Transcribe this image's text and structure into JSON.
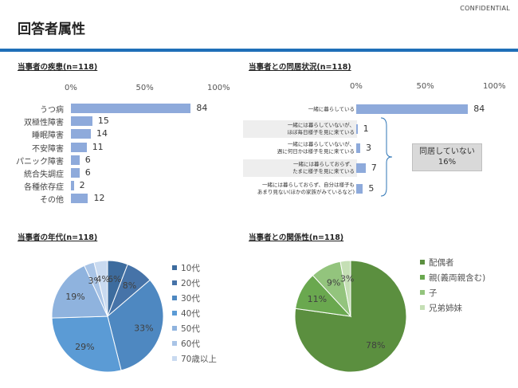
{
  "header": {
    "confidential": "CONFIDENTIAL",
    "title": "回答者属性"
  },
  "colors": {
    "bar": "#8eaadb",
    "rule": "#1f6fb8",
    "age_slices": [
      "#3d6c9e",
      "#4673a8",
      "#4e88c1",
      "#5b9bd5",
      "#8fb3de",
      "#a9c4e6",
      "#c9daf0"
    ],
    "rel_slices": [
      "#5b8f3f",
      "#6aa84f",
      "#93c47d",
      "#c5dfb5"
    ]
  },
  "chart_data": [
    {
      "id": "disease",
      "type": "bar",
      "orientation": "horizontal",
      "title": "当事者の疾患(n=118)",
      "xticks": [
        "0%",
        "50%",
        "100%"
      ],
      "xlim": [
        0,
        100
      ],
      "categories": [
        "うつ病",
        "双極性障害",
        "睡眠障害",
        "不安障害",
        "パニック障害",
        "統合失調症",
        "各種依存症",
        "その他"
      ],
      "values": [
        84,
        15,
        14,
        11,
        6,
        6,
        2,
        12
      ]
    },
    {
      "id": "cohabitation",
      "type": "bar",
      "orientation": "horizontal",
      "title": "当事者との同居状況(n=118)",
      "xticks": [
        "0%",
        "50%",
        "100%"
      ],
      "xlim": [
        0,
        100
      ],
      "categories": [
        [
          "一緒に暮らしている"
        ],
        [
          "一緒には暮らしていないが、",
          "ほぼ毎日様子を見に来ている"
        ],
        [
          "一緒には暮らしていないが、",
          "週に何日かは様子を見に来ている"
        ],
        [
          "一緒には暮らしておらず、",
          "たまに様子を見に来ている"
        ],
        [
          "一緒には暮らしておらず、自分は様子も",
          "あまり見ない(ほかの家族がみているなど)"
        ]
      ],
      "values": [
        84,
        1,
        3,
        7,
        5
      ],
      "annotation": [
        "同居していない",
        "16%"
      ]
    },
    {
      "id": "age",
      "type": "pie",
      "title": "当事者の年代(n=118)",
      "labels": [
        "10代",
        "20代",
        "30代",
        "40代",
        "50代",
        "60代",
        "70歳以上"
      ],
      "values": [
        6,
        8,
        33,
        29,
        19,
        3,
        4
      ],
      "data_labels": [
        "6%",
        "8%",
        "33%",
        "29%",
        "19%",
        "3%",
        "4%"
      ],
      "legend": "right"
    },
    {
      "id": "relationship",
      "type": "pie",
      "title": "当事者との関係性(n=118)",
      "labels": [
        "配偶者",
        "親(義両親含む)",
        "子",
        "兄弟姉妹"
      ],
      "values": [
        78,
        11,
        9,
        3
      ],
      "data_labels": [
        "78%",
        "11%",
        "9%",
        "3%"
      ],
      "legend": "right"
    }
  ]
}
